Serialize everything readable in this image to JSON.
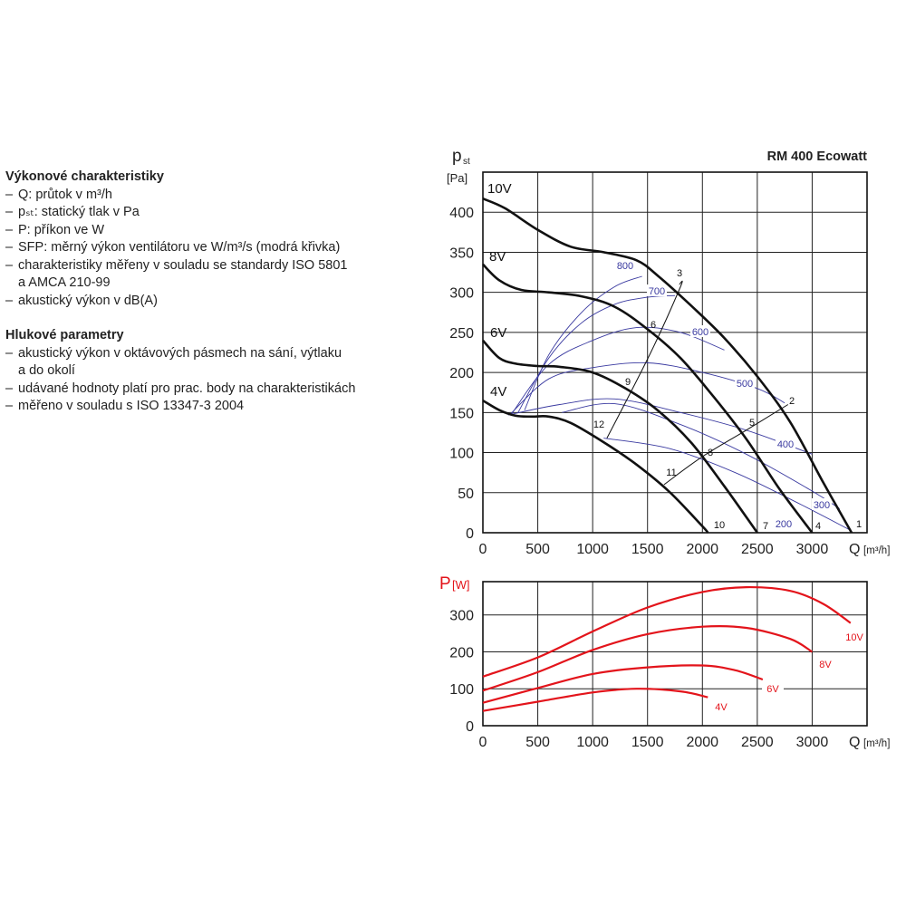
{
  "text_panel": {
    "perf_heading": "Výkonové charakteristiky",
    "perf_items": [
      "Q: průtok v m³/h",
      "pₛₜ: statický tlak v Pa",
      "P: příkon ve W",
      "SFP: měrný výkon ventilátoru ve W/m³/s (modrá křivka)",
      "charakteristiky měřeny v souladu se standardy ISO 5801",
      "a AMCA 210-99",
      "akustický výkon v dB(A)"
    ],
    "noise_heading": "Hlukové parametry",
    "noise_items": [
      "akustický výkon v oktávových pásmech na sání, výtlaku",
      "a do okolí",
      "udávané hodnoty platí pro prac. body na charakteristikách",
      "měřeno v souladu s ISO 13347-3 2004"
    ]
  },
  "chart_data": [
    {
      "type": "line",
      "title": "RM 400 Ecowatt",
      "ylabel_main": "p",
      "ylabel_sub": "st",
      "yunit": "[Pa]",
      "xlabel": "Q",
      "xunit": "[m³/h]",
      "xlim": [
        0,
        3500
      ],
      "ylim": [
        0,
        450
      ],
      "xticks": [
        0,
        500,
        1000,
        1500,
        2000,
        2500,
        3000
      ],
      "yticks": [
        0,
        50,
        100,
        150,
        200,
        250,
        300,
        350,
        400
      ],
      "grid": true,
      "colors": {
        "curve": "#111111",
        "sfp": "#3a3aa0",
        "grid": "#222222"
      },
      "series": [
        {
          "name": "10V",
          "x": [
            0,
            200,
            500,
            800,
            1100,
            1400,
            1600,
            1900,
            2200,
            2500,
            2800,
            3100,
            3360
          ],
          "y": [
            417,
            405,
            378,
            357,
            350,
            340,
            320,
            283,
            243,
            195,
            138,
            63,
            0
          ]
        },
        {
          "name": "8V",
          "x": [
            0,
            150,
            350,
            600,
            900,
            1200,
            1500,
            1800,
            2100,
            2400,
            2700,
            3000
          ],
          "y": [
            335,
            315,
            303,
            300,
            295,
            282,
            254,
            218,
            170,
            117,
            55,
            0
          ]
        },
        {
          "name": "6V",
          "x": [
            0,
            150,
            300,
            500,
            700,
            1000,
            1300,
            1600,
            1900,
            2200,
            2500
          ],
          "y": [
            240,
            218,
            211,
            208,
            207,
            200,
            180,
            152,
            112,
            58,
            0
          ]
        },
        {
          "name": "4V",
          "x": [
            0,
            150,
            300,
            450,
            600,
            800,
            1100,
            1400,
            1700,
            2000,
            2050
          ],
          "y": [
            165,
            153,
            146,
            145,
            145,
            137,
            113,
            85,
            51,
            8,
            0
          ]
        }
      ],
      "sfp_series": [
        {
          "name": "800",
          "x": [
            380,
            600,
            900,
            1200,
            1450
          ],
          "y": [
            153,
            222,
            275,
            307,
            320
          ]
        },
        {
          "name": "700",
          "x": [
            320,
            600,
            900,
            1200,
            1500,
            1750
          ],
          "y": [
            150,
            218,
            262,
            285,
            294,
            296
          ]
        },
        {
          "name": "600",
          "x": [
            260,
            600,
            1000,
            1400,
            1800,
            2200
          ],
          "y": [
            148,
            210,
            240,
            256,
            250,
            228
          ]
        },
        {
          "name": "500",
          "x": [
            250,
            600,
            1000,
            1500,
            2000,
            2500,
            2750
          ],
          "y": [
            148,
            192,
            206,
            212,
            200,
            180,
            162
          ]
        },
        {
          "name": "400",
          "x": [
            230,
            700,
            1200,
            1800,
            2400,
            3000
          ],
          "y": [
            147,
            160,
            167,
            150,
            128,
            98
          ]
        },
        {
          "name": "300",
          "x": [
            720,
            1200,
            1800,
            2400,
            3000,
            3250
          ],
          "y": [
            150,
            161,
            135,
            98,
            52,
            30
          ]
        },
        {
          "name": "200",
          "x": [
            1100,
            1700,
            2300,
            2900,
            3350
          ],
          "y": [
            118,
            105,
            75,
            35,
            3
          ]
        }
      ],
      "system_lines": [
        {
          "x": [
            1130,
            1530,
            1800,
            1790
          ],
          "y": [
            118,
            225,
            307,
            310
          ]
        },
        {
          "x": [
            1650,
            2000,
            2400,
            2780
          ],
          "y": [
            60,
            95,
            128,
            160
          ]
        }
      ],
      "series_labels": [
        "10V",
        "8V",
        "6V",
        "4V"
      ],
      "sfp_labels": [
        "800",
        "700",
        "600",
        "500",
        "400",
        "300",
        "200"
      ],
      "point_labels": [
        "1",
        "2",
        "3",
        "4",
        "5",
        "6",
        "7",
        "8",
        "9",
        "10",
        "11",
        "12"
      ]
    },
    {
      "type": "line",
      "ylabel": "P",
      "yunit": "[W]",
      "xlabel": "Q",
      "xunit": "[m³/h]",
      "xlim": [
        0,
        3500
      ],
      "ylim": [
        0,
        390
      ],
      "xticks": [
        0,
        500,
        1000,
        1500,
        2000,
        2500,
        3000
      ],
      "yticks": [
        0,
        100,
        200,
        300
      ],
      "grid": true,
      "colors": {
        "curve": "#e3141b",
        "axis_label": "#e3141b",
        "grid": "#222222"
      },
      "series": [
        {
          "name": "10V",
          "x": [
            0,
            500,
            1000,
            1500,
            2000,
            2400,
            2800,
            3100,
            3350
          ],
          "y": [
            133,
            185,
            255,
            320,
            362,
            375,
            365,
            330,
            278
          ]
        },
        {
          "name": "8V",
          "x": [
            0,
            500,
            1000,
            1500,
            2000,
            2400,
            2800,
            3000
          ],
          "y": [
            95,
            145,
            205,
            248,
            268,
            265,
            235,
            200
          ]
        },
        {
          "name": "6V",
          "x": [
            0,
            500,
            1000,
            1500,
            2000,
            2300,
            2550
          ],
          "y": [
            62,
            102,
            140,
            158,
            163,
            150,
            125
          ]
        },
        {
          "name": "4V",
          "x": [
            0,
            500,
            1000,
            1400,
            1800,
            2050
          ],
          "y": [
            40,
            65,
            90,
            100,
            93,
            77
          ]
        }
      ],
      "series_labels": [
        "10V",
        "8V",
        "6V",
        "4V"
      ]
    }
  ]
}
